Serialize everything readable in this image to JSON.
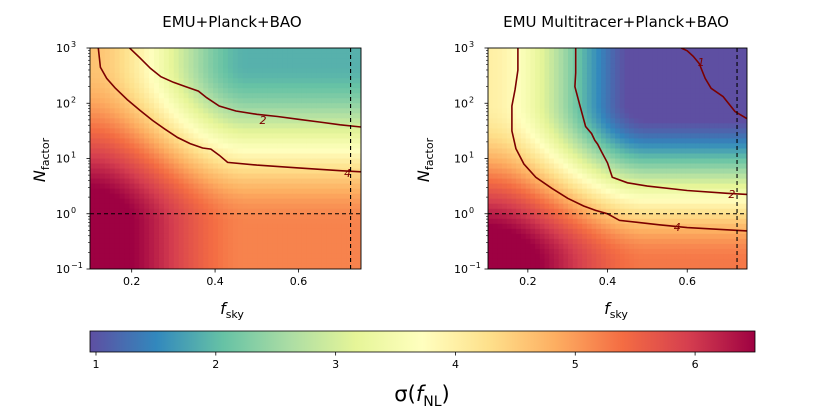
{
  "chart_data": [
    {
      "type": "heatmap",
      "title": "EMU+Planck+BAO",
      "xlabel_main": "f",
      "xlabel_sub": "sky",
      "ylabel_main": "N",
      "ylabel_sub": "factor",
      "xlim": [
        0.1,
        0.75
      ],
      "ylim_log10": [
        -1,
        3
      ],
      "x_ticks": [
        {
          "value": 0.2,
          "label": "0.2"
        },
        {
          "value": 0.4,
          "label": "0.4"
        },
        {
          "value": 0.6,
          "label": "0.6"
        }
      ],
      "y_ticks": [
        {
          "log": -1,
          "base": "10",
          "exp": "−1"
        },
        {
          "log": 0,
          "base": "10",
          "exp": "0"
        },
        {
          "log": 1,
          "base": "10",
          "exp": "1"
        },
        {
          "log": 2,
          "base": "10",
          "exp": "2"
        },
        {
          "log": 3,
          "base": "10",
          "exp": "3"
        }
      ],
      "reference_lines": {
        "vertical_fsky": 0.725,
        "horizontal_log10_N": 0
      },
      "contours": [
        {
          "level": "2",
          "label_at": [
            0.515,
            1.7
          ],
          "points": [
            [
              0.195,
              3
            ],
            [
              0.22,
              2.82
            ],
            [
              0.245,
              2.63
            ],
            [
              0.27,
              2.48
            ],
            [
              0.3,
              2.38
            ],
            [
              0.33,
              2.3
            ],
            [
              0.36,
              2.22
            ],
            [
              0.38,
              2.1
            ],
            [
              0.41,
              1.95
            ],
            [
              0.45,
              1.86
            ],
            [
              0.5,
              1.8
            ],
            [
              0.55,
              1.76
            ],
            [
              0.6,
              1.71
            ],
            [
              0.65,
              1.66
            ],
            [
              0.7,
              1.61
            ],
            [
              0.75,
              1.57
            ]
          ]
        },
        {
          "level": "4",
          "label_at": [
            0.718,
            0.74
          ],
          "points": [
            [
              0.12,
              3
            ],
            [
              0.125,
              2.65
            ],
            [
              0.14,
              2.45
            ],
            [
              0.16,
              2.28
            ],
            [
              0.19,
              2.06
            ],
            [
              0.22,
              1.87
            ],
            [
              0.25,
              1.69
            ],
            [
              0.28,
              1.53
            ],
            [
              0.31,
              1.38
            ],
            [
              0.34,
              1.27
            ],
            [
              0.37,
              1.19
            ],
            [
              0.39,
              1.17
            ],
            [
              0.41,
              1.06
            ],
            [
              0.43,
              0.93
            ],
            [
              0.5,
              0.88
            ],
            [
              0.6,
              0.83
            ],
            [
              0.7,
              0.78
            ],
            [
              0.75,
              0.76
            ]
          ]
        }
      ]
    },
    {
      "type": "heatmap",
      "title": "EMU Multitracer+Planck+BAO",
      "xlabel_main": "f",
      "xlabel_sub": "sky",
      "ylabel_main": "N",
      "ylabel_sub": "factor",
      "xlim": [
        0.1,
        0.75
      ],
      "ylim_log10": [
        -1,
        3
      ],
      "x_ticks": [
        {
          "value": 0.2,
          "label": "0.2"
        },
        {
          "value": 0.4,
          "label": "0.4"
        },
        {
          "value": 0.6,
          "label": "0.6"
        }
      ],
      "y_ticks": [
        {
          "log": -1,
          "base": "10",
          "exp": "−1"
        },
        {
          "log": 0,
          "base": "10",
          "exp": "0"
        },
        {
          "log": 1,
          "base": "10",
          "exp": "1"
        },
        {
          "log": 2,
          "base": "10",
          "exp": "2"
        },
        {
          "log": 3,
          "base": "10",
          "exp": "3"
        }
      ],
      "reference_lines": {
        "vertical_fsky": 0.725,
        "horizontal_log10_N": 0
      },
      "contours": [
        {
          "level": "1",
          "label_at": [
            0.635,
            2.75
          ],
          "points": [
            [
              0.585,
              3
            ],
            [
              0.6,
              2.95
            ],
            [
              0.615,
              2.85
            ],
            [
              0.63,
              2.72
            ],
            [
              0.645,
              2.45
            ],
            [
              0.66,
              2.27
            ],
            [
              0.69,
              2.12
            ],
            [
              0.72,
              1.85
            ],
            [
              0.75,
              1.72
            ]
          ]
        },
        {
          "level": "2",
          "label_at": [
            0.712,
            0.36
          ],
          "points": [
            [
              0.32,
              3
            ],
            [
              0.32,
              2.55
            ],
            [
              0.318,
              2.3
            ],
            [
              0.33,
              1.98
            ],
            [
              0.345,
              1.58
            ],
            [
              0.36,
              1.45
            ],
            [
              0.368,
              1.33
            ],
            [
              0.375,
              1.26
            ],
            [
              0.385,
              1.12
            ],
            [
              0.4,
              0.92
            ],
            [
              0.412,
              0.66
            ],
            [
              0.45,
              0.56
            ],
            [
              0.5,
              0.5
            ],
            [
              0.6,
              0.42
            ],
            [
              0.7,
              0.37
            ],
            [
              0.75,
              0.35
            ]
          ]
        },
        {
          "level": "4",
          "label_at": [
            0.575,
            -0.24
          ],
          "points": [
            [
              0.175,
              3
            ],
            [
              0.175,
              2.6
            ],
            [
              0.168,
              2.25
            ],
            [
              0.16,
              1.95
            ],
            [
              0.16,
              1.5
            ],
            [
              0.17,
              1.18
            ],
            [
              0.19,
              0.9
            ],
            [
              0.22,
              0.66
            ],
            [
              0.26,
              0.46
            ],
            [
              0.3,
              0.28
            ],
            [
              0.34,
              0.14
            ],
            [
              0.37,
              0.06
            ],
            [
              0.4,
              0.0
            ],
            [
              0.43,
              -0.12
            ],
            [
              0.48,
              -0.16
            ],
            [
              0.53,
              -0.2
            ],
            [
              0.6,
              -0.25
            ],
            [
              0.7,
              -0.29
            ],
            [
              0.75,
              -0.31
            ]
          ]
        }
      ]
    }
  ],
  "colorbar": {
    "label_sigma": "σ(",
    "label_f": "f",
    "label_sub": "NL",
    "label_close": ")",
    "range": [
      0.95,
      6.5
    ],
    "ticks": [
      {
        "value": 1,
        "label": "1"
      },
      {
        "value": 2,
        "label": "2"
      },
      {
        "value": 3,
        "label": "3"
      },
      {
        "value": 4,
        "label": "4"
      },
      {
        "value": 5,
        "label": "5"
      },
      {
        "value": 6,
        "label": "6"
      }
    ],
    "colormap": "Spectral_r",
    "colormap_stops": [
      "#5e4fa2",
      "#3288bd",
      "#66c2a5",
      "#abdda4",
      "#e6f598",
      "#ffffbf",
      "#fee08b",
      "#fdae61",
      "#f46d43",
      "#d53e4f",
      "#9e0142"
    ]
  },
  "colors": {
    "contour": "#7b0000",
    "reference_line": "#000000",
    "axis": "#000000"
  }
}
